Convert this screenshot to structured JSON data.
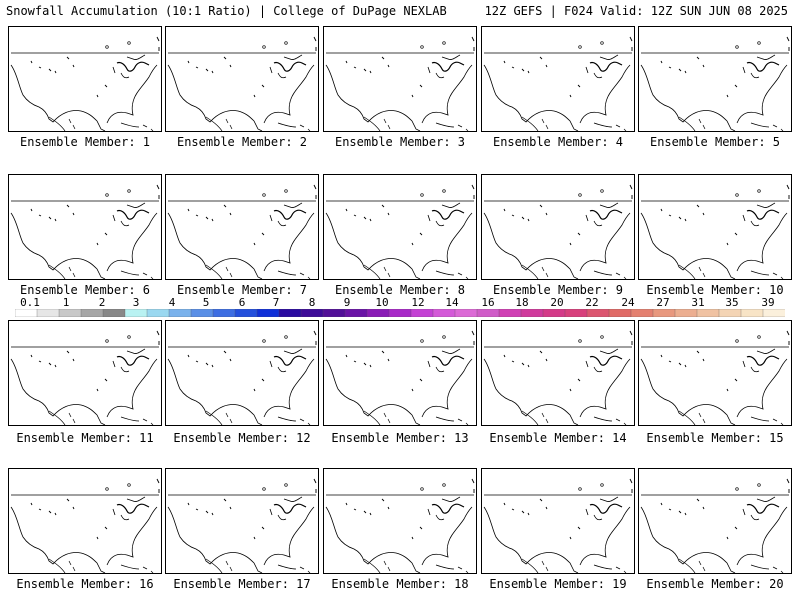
{
  "header": {
    "left": "Snowfall Accumulation (10:1 Ratio) | College of DuPage NEXLAB",
    "right": "12Z GEFS | F024 Valid: 12Z SUN JUN 08 2025"
  },
  "panels": [
    {
      "label": "Ensemble Member: 1"
    },
    {
      "label": "Ensemble Member: 2"
    },
    {
      "label": "Ensemble Member: 3"
    },
    {
      "label": "Ensemble Member: 4"
    },
    {
      "label": "Ensemble Member: 5"
    },
    {
      "label": "Ensemble Member: 6"
    },
    {
      "label": "Ensemble Member: 7"
    },
    {
      "label": "Ensemble Member: 8"
    },
    {
      "label": "Ensemble Member: 9"
    },
    {
      "label": "Ensemble Member: 10"
    },
    {
      "label": "Ensemble Member: 11"
    },
    {
      "label": "Ensemble Member: 12"
    },
    {
      "label": "Ensemble Member: 13"
    },
    {
      "label": "Ensemble Member: 14"
    },
    {
      "label": "Ensemble Member: 15"
    },
    {
      "label": "Ensemble Member: 16"
    },
    {
      "label": "Ensemble Member: 17"
    },
    {
      "label": "Ensemble Member: 18"
    },
    {
      "label": "Ensemble Member: 19"
    },
    {
      "label": "Ensemble Member: 20"
    }
  ],
  "colorbar": {
    "labels": [
      "0.1",
      "1",
      "2",
      "3",
      "4",
      "5",
      "6",
      "7",
      "8",
      "9",
      "10",
      "12",
      "14",
      "16",
      "18",
      "20",
      "22",
      "24",
      "27",
      "31",
      "35",
      "39"
    ],
    "colors": [
      "#ffffff",
      "#e6e6e6",
      "#c8c8c8",
      "#a6a6a6",
      "#888888",
      "#b9f2f2",
      "#9ad8f0",
      "#7ab2ec",
      "#5a8fe6",
      "#3e6ee2",
      "#2450dc",
      "#1030d8",
      "#2a0aa0",
      "#3e0c98",
      "#521098",
      "#6a14a6",
      "#8a1cb6",
      "#a82ac8",
      "#c442d4",
      "#d45ad8",
      "#dc6ad6",
      "#d05cc8",
      "#d040b4",
      "#d03a9c",
      "#d43a88",
      "#d8407c",
      "#dc5670",
      "#e06a66",
      "#e48070",
      "#e8987e",
      "#ecae90",
      "#f0c2a2",
      "#f4d4b4",
      "#f8e4c6",
      "#fbf0dc"
    ]
  },
  "map_data": {
    "projection": "CONUS regional",
    "snowfall_inches_all_members": 0
  }
}
